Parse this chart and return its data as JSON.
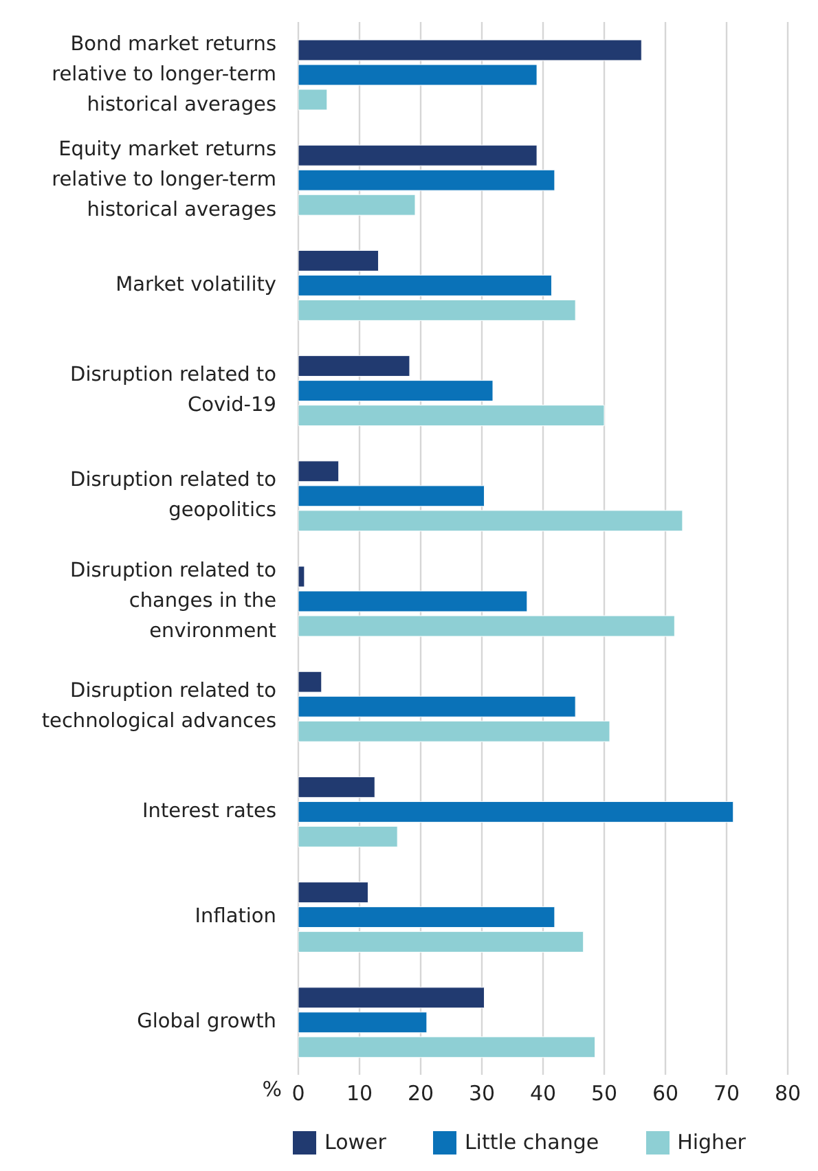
{
  "chart_data": {
    "type": "bar",
    "orientation": "horizontal",
    "xlabel": "%",
    "categories": [
      "Bond market returns relative to longer-term historical averages",
      "Equity market returns relative to longer-term historical averages",
      "Market volatility",
      "Disruption related to Covid-19",
      "Disruption related to geopolitics",
      "Disruption related to changes in the environment",
      "Disruption related to technological advances",
      "Interest rates",
      "Inflation",
      "Global growth"
    ],
    "series": [
      {
        "name": "Lower",
        "color": "#213a70",
        "values": [
          56.1,
          39.0,
          13.1,
          18.2,
          6.6,
          1.0,
          3.8,
          12.5,
          11.4,
          30.4
        ]
      },
      {
        "name": "Little change",
        "color": "#0a72b8",
        "values": [
          39.0,
          41.9,
          41.4,
          31.8,
          30.4,
          37.4,
          45.3,
          71.1,
          41.9,
          21.0
        ]
      },
      {
        "name": "Higher",
        "color": "#8ecfd4",
        "values": [
          4.7,
          19.1,
          45.3,
          50.0,
          62.8,
          61.5,
          50.9,
          16.2,
          46.6,
          48.5
        ]
      }
    ],
    "xlim": [
      0,
      80
    ],
    "xticks": [
      0,
      10,
      20,
      30,
      40,
      50,
      60,
      70,
      80
    ],
    "grid": "x",
    "legend": "bottom"
  }
}
